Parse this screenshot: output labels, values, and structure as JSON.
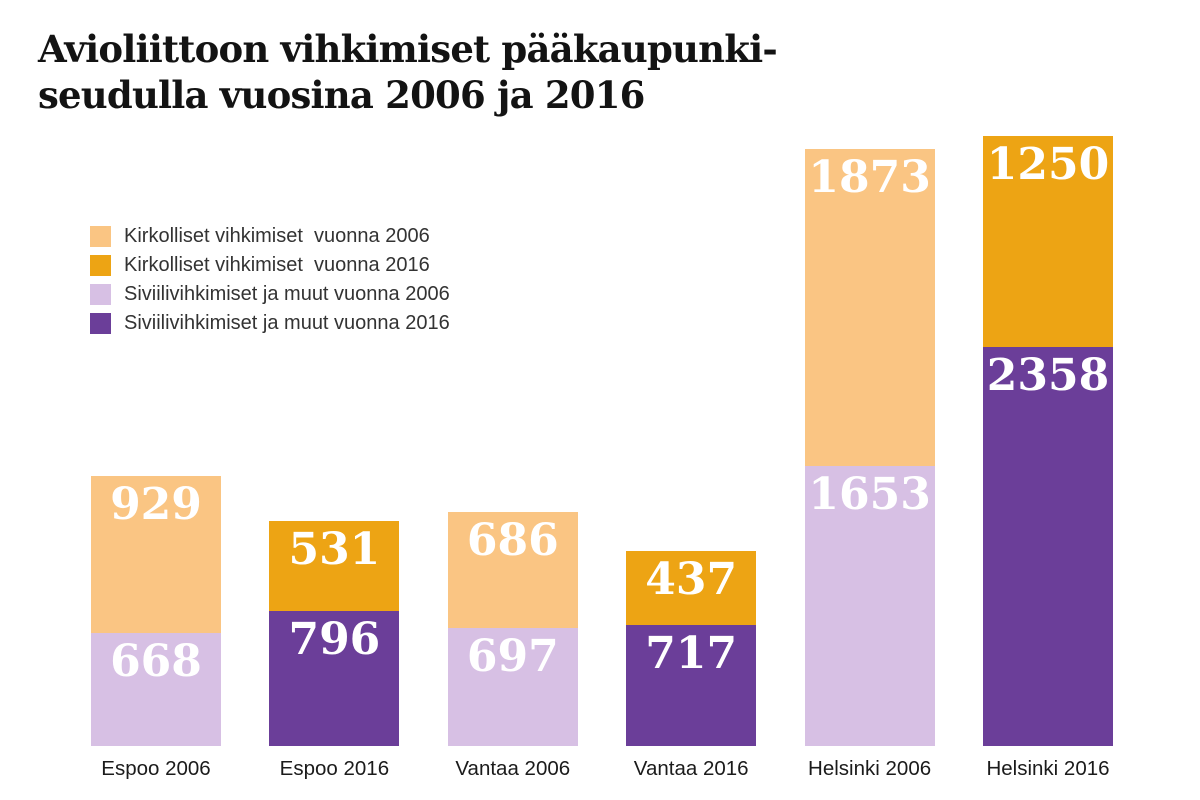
{
  "title": {
    "line1": "Avioliittoon vihkimiset pääkaupunki-",
    "line2": "seudulla vuosina 2006 ja 2016"
  },
  "legend": {
    "items": [
      {
        "label": "Kirkolliset vihkimiset  vuonna 2006",
        "color": "#FAC583",
        "series": "church",
        "year": 2006
      },
      {
        "label": "Kirkolliset vihkimiset  vuonna 2016",
        "color": "#EDA414",
        "series": "church",
        "year": 2016
      },
      {
        "label": "Siviilivihkimiset ja muut vuonna 2006",
        "color": "#D7C0E4",
        "series": "civil",
        "year": 2006
      },
      {
        "label": "Siviilivihkimiset ja muut vuonna 2016",
        "color": "#6B3E99",
        "series": "civil",
        "year": 2016
      }
    ]
  },
  "colors": {
    "church_2006": "#FAC583",
    "church_2016": "#EDA414",
    "civil_2006": "#D7C0E4",
    "civil_2016": "#6B3E99",
    "value_label_text": "#FFFFFF",
    "title_text": "#131313",
    "axis_text": "#1B1B1B",
    "background": "#FFFFFF"
  },
  "chart_data": {
    "type": "bar",
    "stacked": true,
    "orientation": "vertical",
    "axes": "hidden",
    "grid": false,
    "legend_position": "upper-left",
    "value_labels": "inside-top-of-segment",
    "title": "Avioliittoon vihkimiset pääkaupunkiseudulla vuosina 2006 ja 2016",
    "categories": [
      "Espoo 2006",
      "Espoo 2016",
      "Vantaa 2006",
      "Vantaa 2016",
      "Helsinki 2006",
      "Helsinki 2016"
    ],
    "series": [
      {
        "name": "Siviilivihkimiset ja muut",
        "position": "bottom",
        "values": [
          668,
          796,
          697,
          717,
          1653,
          2358
        ]
      },
      {
        "name": "Kirkolliset vihkimiset",
        "position": "top",
        "values": [
          929,
          531,
          686,
          437,
          1873,
          1250
        ]
      }
    ],
    "bars": [
      {
        "category": "Espoo 2006",
        "year": 2006,
        "civil": 668,
        "church": 929
      },
      {
        "category": "Espoo 2016",
        "year": 2016,
        "civil": 796,
        "church": 531
      },
      {
        "category": "Vantaa 2006",
        "year": 2006,
        "civil": 697,
        "church": 686
      },
      {
        "category": "Vantaa 2016",
        "year": 2016,
        "civil": 717,
        "church": 437
      },
      {
        "category": "Helsinki 2006",
        "year": 2006,
        "civil": 1653,
        "church": 1873
      },
      {
        "category": "Helsinki 2016",
        "year": 2016,
        "civil": 2358,
        "church": 1250
      }
    ]
  }
}
